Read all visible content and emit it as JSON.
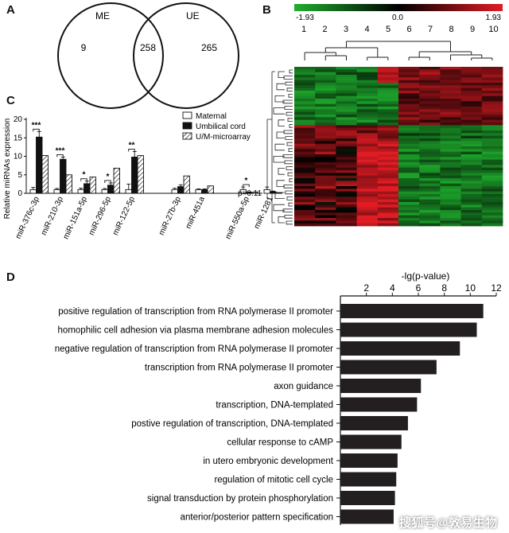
{
  "panels": {
    "a": "A",
    "b": "B",
    "c": "C",
    "d": "D"
  },
  "chart_data": [
    {
      "type": "venn",
      "sets": [
        {
          "label": "ME",
          "only": "9"
        },
        {
          "label": "UE",
          "only": "265"
        }
      ],
      "intersection": "258"
    },
    {
      "type": "heatmap",
      "scale": {
        "min": "-1.93",
        "mid": "0.0",
        "max": "1.93",
        "colors": {
          "low": "#1fae2e",
          "mid": "#000000",
          "high": "#e01c24"
        }
      },
      "columns": [
        "1",
        "2",
        "3",
        "4",
        "5",
        "6",
        "7",
        "8",
        "9",
        "10"
      ]
    },
    {
      "type": "bar",
      "ylabel": "Relative miRNAs expression",
      "ylim": [
        0,
        20
      ],
      "yticks": [
        "0",
        "5",
        "10",
        "15",
        "20"
      ],
      "yticks_values": [
        0,
        5,
        10,
        15,
        20
      ],
      "categories": [
        "miR-376c-3p",
        "miR-210-3p",
        "miR-151a-5p",
        "miR-296-5p",
        "miR-122-5p",
        "miR-27b-3p",
        "miR-451a",
        "miR-550a-5p",
        "miR-1281"
      ],
      "groups": [
        0,
        0,
        0,
        0,
        0,
        1,
        1,
        2,
        2
      ],
      "series": [
        {
          "name": "Maternal",
          "values": [
            1.0,
            1.0,
            1.0,
            1.0,
            1.0,
            1.0,
            1.0,
            1.0,
            1.0
          ],
          "err": [
            0.6,
            0.3,
            0.4,
            0.3,
            1.5,
            0.4,
            0.2,
            0.7,
            0.7
          ]
        },
        {
          "name": "Umbilical cord",
          "values": [
            15.2,
            9.2,
            2.6,
            2.2,
            9.8,
            1.8,
            1.0,
            0.25,
            0.45
          ],
          "err": [
            1.5,
            0.6,
            0.7,
            0.6,
            1.5,
            0.5,
            0.2,
            0.1,
            0.15
          ]
        },
        {
          "name": "U/M-microarray",
          "values": [
            10.2,
            5.0,
            4.4,
            6.8,
            10.2,
            4.7,
            2.0,
            0.3,
            0.15
          ],
          "err": [
            0,
            0,
            0,
            0,
            0,
            0,
            0,
            0,
            0
          ]
        }
      ],
      "significance": [
        {
          "category": "miR-376c-3p",
          "label": "***"
        },
        {
          "category": "miR-210-3p",
          "label": "***"
        },
        {
          "category": "miR-151a-5p",
          "label": "*"
        },
        {
          "category": "miR-296-5p",
          "label": "*"
        },
        {
          "category": "miR-122-5p",
          "label": "**"
        },
        {
          "category": "miR-550a-5p",
          "label": "*"
        }
      ],
      "annotation": "p=0.11"
    },
    {
      "type": "bar",
      "orientation": "horizontal",
      "xlabel": "-lg(p-value)",
      "xlim": [
        0,
        12
      ],
      "xticks": [
        "2",
        "4",
        "6",
        "8",
        "10",
        "12"
      ],
      "xticks_values": [
        2,
        4,
        6,
        8,
        10,
        12
      ],
      "categories": [
        "positive regulation of transcription from RNA polymerase II promoter",
        "homophilic cell adhesion via plasma membrane adhesion molecules",
        "negative regulation of transcription from RNA polymerase II promoter",
        "transcription from RNA polymerase II promoter",
        "axon guidance",
        "transcription, DNA-templated",
        "postive regulation of transcription, DNA-templated",
        "cellular response to cAMP",
        "in utero embryonic development",
        "regulation of mitotic cell cycle",
        "signal transduction by protein phosphorylation",
        "anterior/posterior pattern specification"
      ],
      "values": [
        11.0,
        10.5,
        9.2,
        7.4,
        6.2,
        5.9,
        5.2,
        4.7,
        4.4,
        4.3,
        4.2,
        4.1
      ]
    }
  ],
  "watermark": "搜狐号@敦易生物"
}
